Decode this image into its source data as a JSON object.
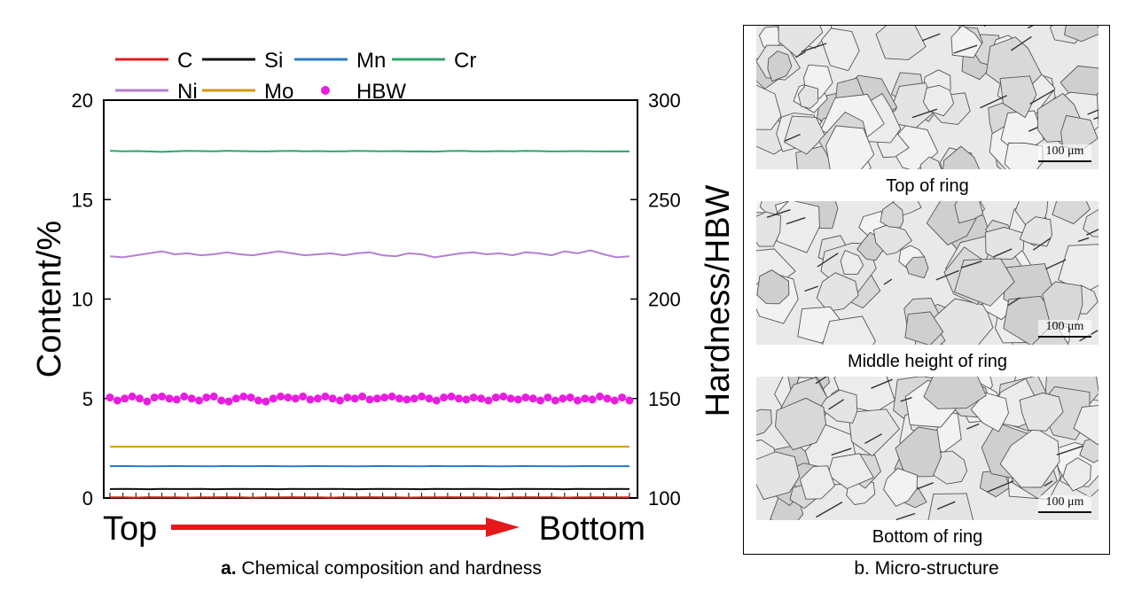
{
  "chart_data": [
    {
      "type": "line",
      "left_axis": {
        "label": "Content/%",
        "ylim": [
          0,
          20
        ],
        "ticks": [
          "0",
          "5",
          "10",
          "15",
          "20"
        ]
      },
      "right_axis": {
        "label": "Hardness/HBW",
        "ylim": [
          100,
          300
        ],
        "ticks": [
          "100",
          "150",
          "200",
          "250",
          "300"
        ]
      },
      "x_start_label": "Top",
      "x_end_label": "Bottom",
      "num_points": 41,
      "series": [
        {
          "name": "C",
          "color": "#e3191c",
          "axis": "left",
          "base": 0.03,
          "values": [
            0.03,
            0.03,
            0.02,
            0.04,
            0.03,
            0.03,
            0.02,
            0.03,
            0.03,
            0.04,
            0.03,
            0.02,
            0.03,
            0.03,
            0.04,
            0.03,
            0.03,
            0.02,
            0.03,
            0.03,
            0.04,
            0.03,
            0.03,
            0.02,
            0.03,
            0.03,
            0.04,
            0.03,
            0.03,
            0.03,
            0.02,
            0.03,
            0.04,
            0.03,
            0.03,
            0.02,
            0.03,
            0.03,
            0.04,
            0.03,
            0.03
          ]
        },
        {
          "name": "Si",
          "color": "#111111",
          "axis": "left",
          "values": [
            0.45,
            0.46,
            0.45,
            0.44,
            0.46,
            0.45,
            0.45,
            0.46,
            0.44,
            0.45,
            0.46,
            0.45,
            0.45,
            0.44,
            0.46,
            0.45,
            0.45,
            0.46,
            0.45,
            0.44,
            0.45,
            0.46,
            0.45,
            0.45,
            0.44,
            0.46,
            0.45,
            0.45,
            0.46,
            0.45,
            0.44,
            0.45,
            0.46,
            0.45,
            0.45,
            0.44,
            0.46,
            0.45,
            0.45,
            0.46,
            0.45
          ]
        },
        {
          "name": "Mn",
          "color": "#2b7bc4",
          "axis": "left",
          "values": [
            1.6,
            1.61,
            1.6,
            1.59,
            1.6,
            1.61,
            1.6,
            1.6,
            1.59,
            1.61,
            1.6,
            1.6,
            1.61,
            1.6,
            1.59,
            1.6,
            1.61,
            1.6,
            1.6,
            1.59,
            1.6,
            1.61,
            1.6,
            1.6,
            1.59,
            1.61,
            1.6,
            1.6,
            1.61,
            1.6,
            1.59,
            1.6,
            1.61,
            1.6,
            1.6,
            1.59,
            1.6,
            1.61,
            1.6,
            1.6,
            1.6
          ]
        },
        {
          "name": "Cr",
          "color": "#2fa46a",
          "axis": "left",
          "values": [
            17.45,
            17.43,
            17.44,
            17.42,
            17.4,
            17.43,
            17.45,
            17.44,
            17.43,
            17.45,
            17.44,
            17.43,
            17.42,
            17.44,
            17.45,
            17.43,
            17.44,
            17.42,
            17.43,
            17.45,
            17.44,
            17.43,
            17.44,
            17.42,
            17.43,
            17.41,
            17.44,
            17.45,
            17.43,
            17.42,
            17.44,
            17.43,
            17.45,
            17.44,
            17.42,
            17.43,
            17.44,
            17.43,
            17.42,
            17.43,
            17.42
          ]
        },
        {
          "name": "Ni",
          "color": "#b57fd1",
          "axis": "left",
          "values": [
            12.15,
            12.1,
            12.2,
            12.3,
            12.4,
            12.25,
            12.3,
            12.2,
            12.25,
            12.35,
            12.25,
            12.2,
            12.3,
            12.4,
            12.3,
            12.2,
            12.25,
            12.3,
            12.2,
            12.3,
            12.35,
            12.2,
            12.15,
            12.3,
            12.25,
            12.1,
            12.2,
            12.3,
            12.35,
            12.25,
            12.3,
            12.2,
            12.35,
            12.3,
            12.2,
            12.4,
            12.3,
            12.45,
            12.25,
            12.1,
            12.15
          ]
        },
        {
          "name": "Mo",
          "color": "#d19a0c",
          "axis": "left",
          "values": [
            2.58,
            2.58,
            2.58,
            2.58,
            2.58,
            2.58,
            2.58,
            2.58,
            2.58,
            2.58,
            2.58,
            2.58,
            2.58,
            2.58,
            2.58,
            2.58,
            2.58,
            2.58,
            2.58,
            2.58,
            2.58,
            2.58,
            2.58,
            2.58,
            2.58,
            2.58,
            2.58,
            2.58,
            2.58,
            2.58,
            2.58,
            2.58,
            2.58,
            2.58,
            2.58,
            2.58,
            2.58,
            2.58,
            2.58,
            2.58,
            2.58
          ]
        }
      ],
      "scatter": {
        "name": "HBW",
        "color": "#e81de0",
        "axis": "right",
        "values": [
          150.5,
          149,
          150,
          151,
          150,
          148.5,
          150.5,
          151,
          150,
          149.5,
          151,
          150,
          149,
          150.5,
          151,
          149,
          148.5,
          150,
          151,
          150.5,
          149,
          148.5,
          150,
          151,
          150.5,
          150,
          151,
          149.5,
          150,
          151,
          150,
          149,
          150.5,
          150,
          151,
          149.5,
          150,
          150.5,
          151,
          150,
          149.5,
          150,
          151,
          150,
          149,
          150.5,
          151,
          150,
          149.5,
          150.5,
          150,
          149,
          150.5,
          151,
          150,
          149.5,
          150.5,
          150,
          149,
          150.5,
          149,
          150,
          150.5,
          149,
          150,
          149.5,
          151,
          150,
          149,
          150.5,
          149
        ]
      },
      "legend": {
        "placement": "top-left",
        "rows": [
          [
            "C",
            "Si",
            "Mn",
            "Cr"
          ],
          [
            "Ni",
            "Mo",
            "HBW"
          ]
        ]
      },
      "grid": false
    }
  ],
  "captions": {
    "a_prefix": "a.",
    "a_text": "Chemical composition and hardness",
    "b_text": "b. Micro-structure"
  },
  "micrographs": [
    {
      "label": "Top of ring",
      "scale": "100 μm"
    },
    {
      "label": "Middle height of ring",
      "scale": "100 μm"
    },
    {
      "label": "Bottom of ring",
      "scale": "100 μm"
    }
  ],
  "colors": {
    "arrow": "#e3191c"
  }
}
